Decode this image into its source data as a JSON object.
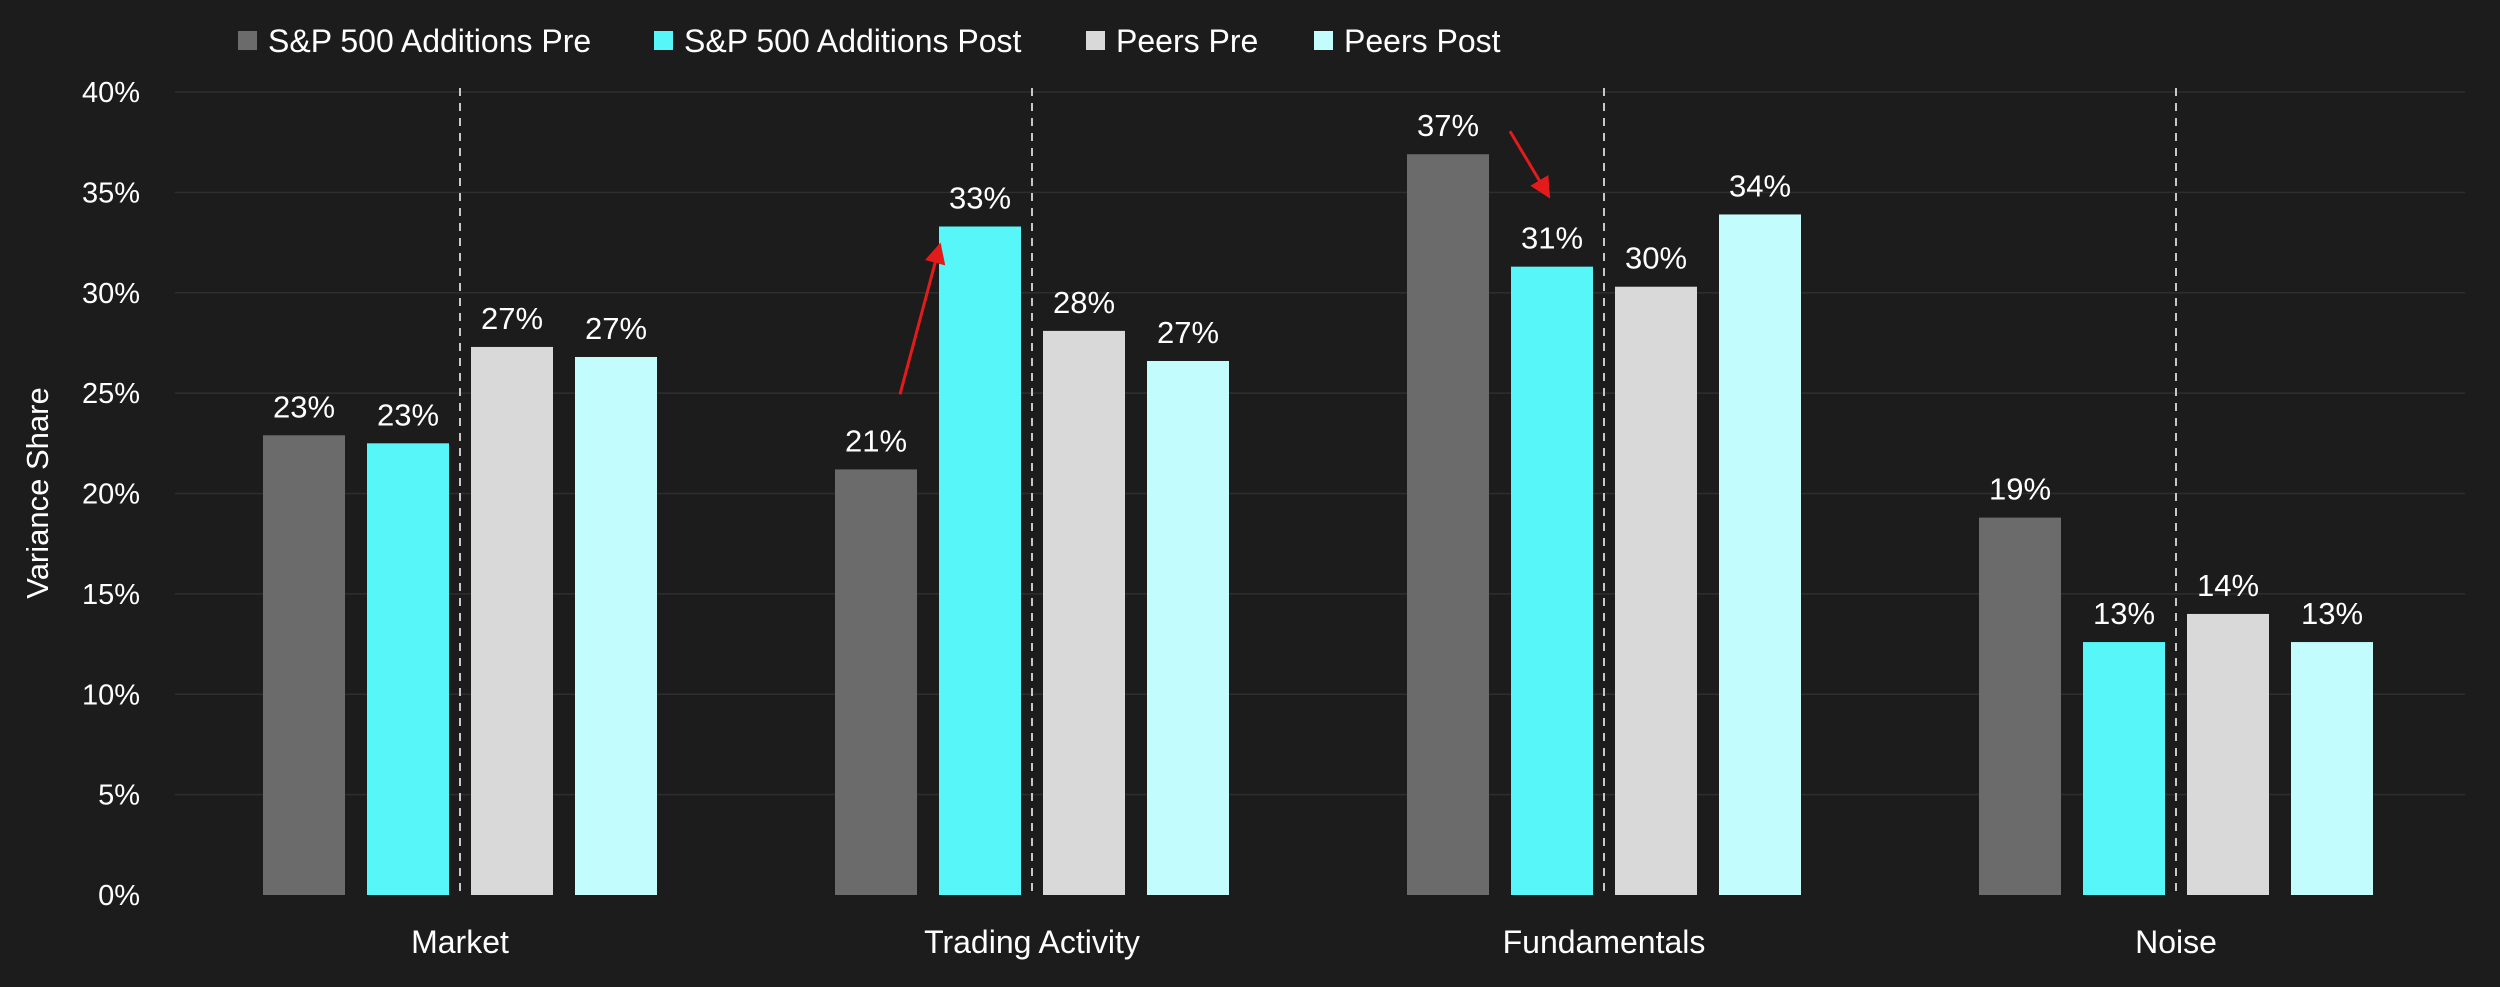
{
  "chart_data": {
    "type": "bar",
    "title": "",
    "xlabel": "",
    "ylabel": "Variance Share",
    "ylim": [
      0,
      40
    ],
    "yticks": [
      "0%",
      "5%",
      "10%",
      "15%",
      "20%",
      "25%",
      "30%",
      "35%",
      "40%"
    ],
    "categories": [
      "Market",
      "Trading Activity",
      "Fundamentals",
      "Noise"
    ],
    "series": [
      {
        "name": "S&P 500 Additions Pre",
        "color": "#6b6b6b",
        "values": [
          22.9,
          21.2,
          36.9,
          18.8
        ],
        "labels": [
          "23%",
          "21%",
          "37%",
          "19%"
        ]
      },
      {
        "name": "S&P 500 Additions Post",
        "color": "#57f6f8",
        "values": [
          22.5,
          33.3,
          31.3,
          12.6
        ],
        "labels": [
          "23%",
          "33%",
          "31%",
          "13%"
        ]
      },
      {
        "name": "Peers Pre",
        "color": "#d9d9d9",
        "values": [
          27.3,
          28.1,
          30.3,
          14.0
        ],
        "labels": [
          "27%",
          "28%",
          "30%",
          "14%"
        ]
      },
      {
        "name": "Peers Post",
        "color": "#c2fcfd",
        "values": [
          26.8,
          26.6,
          33.9,
          12.6
        ],
        "labels": [
          "27%",
          "27%",
          "34%",
          "13%"
        ]
      }
    ],
    "grid": true,
    "legend_position": "top-left",
    "category_dividers": "dashed",
    "annotations": [
      {
        "type": "arrow",
        "color": "#e31b1b",
        "category": "Trading Activity",
        "from_series": "S&P 500 Additions Pre",
        "to_series": "S&P 500 Additions Post",
        "direction": "up"
      },
      {
        "type": "arrow",
        "color": "#e31b1b",
        "category": "Fundamentals",
        "from_series": "S&P 500 Additions Pre",
        "to_series": "S&P 500 Additions Post",
        "direction": "down"
      }
    ]
  }
}
